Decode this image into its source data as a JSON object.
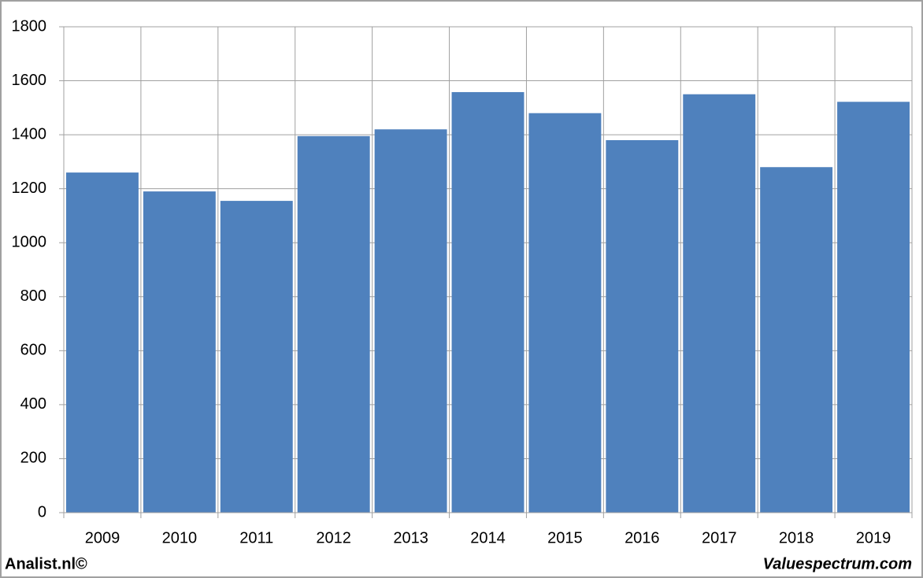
{
  "chart_data": {
    "type": "bar",
    "categories": [
      "2009",
      "2010",
      "2011",
      "2012",
      "2013",
      "2014",
      "2015",
      "2016",
      "2017",
      "2018",
      "2019"
    ],
    "values": [
      1260,
      1190,
      1155,
      1395,
      1420,
      1558,
      1480,
      1380,
      1550,
      1280,
      1522
    ],
    "color": "#4f81bd",
    "ylim": [
      0,
      1800
    ],
    "yticks": [
      0,
      200,
      400,
      600,
      800,
      1000,
      1200,
      1400,
      1600,
      1800
    ],
    "grid": true,
    "footer_left": "Analist.nl©",
    "footer_right": "Valuespectrum.com"
  }
}
